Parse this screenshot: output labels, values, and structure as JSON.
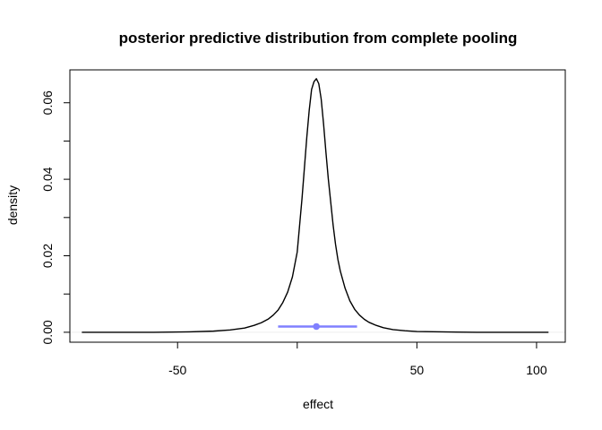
{
  "chart_data": {
    "type": "line",
    "title": "posterior predictive distribution from complete pooling",
    "xlabel": "effect",
    "ylabel": "density",
    "xlim": [
      -95,
      112
    ],
    "ylim": [
      -0.0026,
      0.0686
    ],
    "x_ticks": [
      -50,
      0,
      50,
      100
    ],
    "x_tick_labels": [
      "-50",
      "",
      "50",
      "100"
    ],
    "y_ticks": [
      0.0,
      0.01,
      0.02,
      0.03,
      0.04,
      0.05,
      0.06
    ],
    "y_tick_labels": [
      "0.00",
      "",
      "0.02",
      "",
      "0.04",
      "",
      "0.06"
    ],
    "grid": false,
    "legend": "none",
    "series": [
      {
        "color": "#000000",
        "x": [
          -90,
          -60,
          -45,
          -35,
          -28,
          -22,
          -18,
          -15,
          -12,
          -10,
          -8,
          -6,
          -4,
          -2,
          0,
          1,
          2,
          3,
          4,
          5,
          6,
          7,
          8,
          9,
          10,
          11,
          12,
          13,
          14,
          15,
          16,
          17,
          18,
          20,
          22,
          24,
          26,
          28,
          30,
          33,
          36,
          40,
          45,
          50,
          60,
          75,
          90,
          105
        ],
        "y": [
          0.0,
          0.0,
          0.0001,
          0.0003,
          0.0006,
          0.0011,
          0.0018,
          0.0025,
          0.0035,
          0.0045,
          0.0058,
          0.0078,
          0.0105,
          0.0145,
          0.021,
          0.028,
          0.035,
          0.043,
          0.051,
          0.058,
          0.0635,
          0.0655,
          0.0663,
          0.065,
          0.061,
          0.0545,
          0.047,
          0.04,
          0.034,
          0.028,
          0.023,
          0.019,
          0.016,
          0.0115,
          0.0082,
          0.006,
          0.0045,
          0.0034,
          0.0026,
          0.0018,
          0.0012,
          0.0007,
          0.0004,
          0.0002,
          0.0001,
          0.0,
          0.0,
          0.0
        ]
      }
    ],
    "interval": {
      "color": "#8080ff",
      "low": -8,
      "high": 25,
      "point": 8,
      "y": 0.0015
    },
    "zero_line": {
      "y": 0,
      "color": "#eeeeee"
    }
  }
}
